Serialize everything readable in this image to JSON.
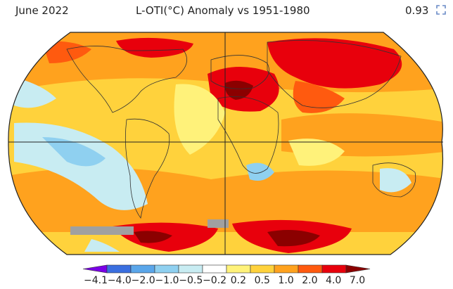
{
  "header": {
    "left": "June 2022",
    "center": "L-OTI(°C) Anomaly vs 1951-1980",
    "right": "0.93",
    "corner_icon": "expand-icon"
  },
  "colorbar": {
    "ticks": [
      "−4.1",
      "−4.0",
      "−2.0",
      "−1.0",
      "−0.5",
      "−0.2",
      "0.2",
      "0.5",
      "1.0",
      "2.0",
      "4.0",
      "7.0"
    ],
    "colors": [
      "#7a00e6",
      "#3a6fe0",
      "#5aa6ea",
      "#8fd0f0",
      "#c8ecf2",
      "#ffffff",
      "#fff27a",
      "#ffd23c",
      "#ffa21e",
      "#ff5a0f",
      "#e8000c",
      "#8b0000"
    ]
  },
  "map": {
    "colors": {
      "ocean_warm": "#ffd23c",
      "light_warm": "#fff27a",
      "orange": "#ffa21e",
      "red_orange": "#ff5a0f",
      "red": "#e8000c",
      "dark_red": "#8b0000",
      "cool": "#c8ecf2",
      "cooler": "#8fd0f0",
      "no_data": "#a0a0a0"
    }
  }
}
